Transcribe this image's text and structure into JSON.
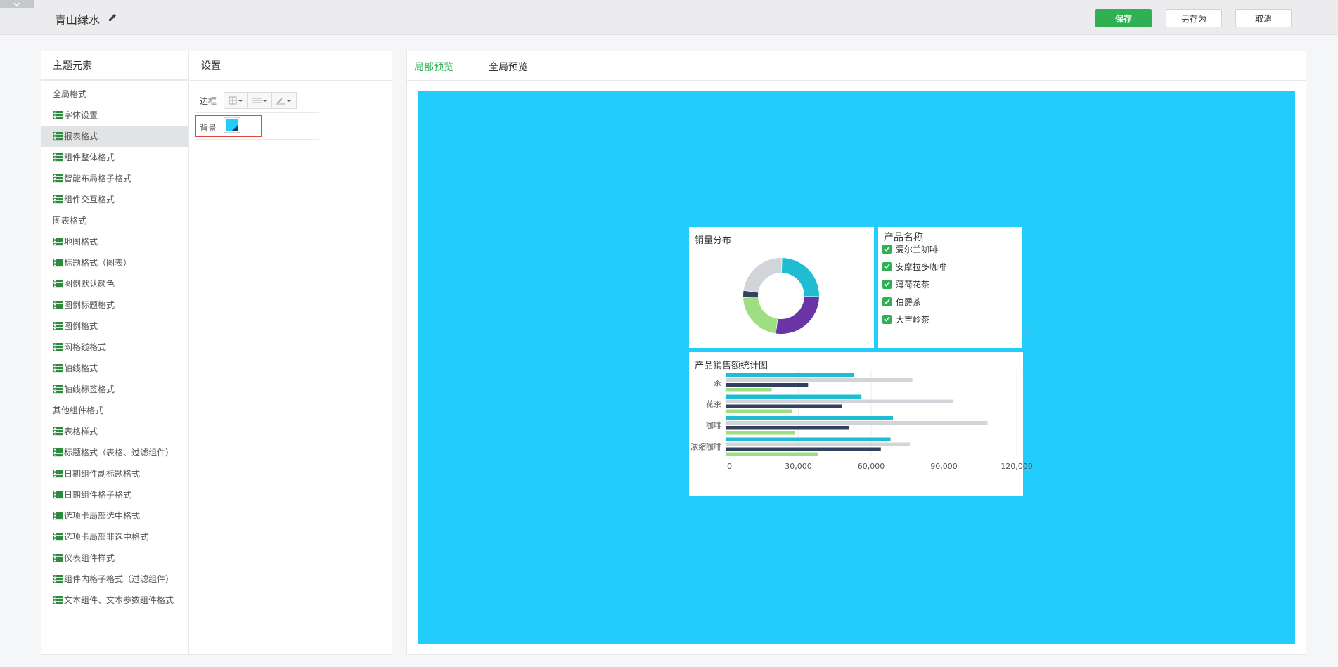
{
  "header": {
    "title": "青山绿水",
    "save_label": "保存",
    "save_as_label": "另存为",
    "cancel_label": "取消"
  },
  "elements_panel": {
    "title": "主题元素",
    "items": [
      {
        "label": "全局格式",
        "type": "group"
      },
      {
        "label": "字体设置",
        "type": "leaf"
      },
      {
        "label": "报表格式",
        "type": "leaf",
        "selected": true
      },
      {
        "label": "组件整体格式",
        "type": "leaf"
      },
      {
        "label": "智能布局格子格式",
        "type": "leaf"
      },
      {
        "label": "组件交互格式",
        "type": "leaf"
      },
      {
        "label": "图表格式",
        "type": "group"
      },
      {
        "label": "地图格式",
        "type": "leaf"
      },
      {
        "label": "标题格式（图表）",
        "type": "leaf"
      },
      {
        "label": "图例默认颜色",
        "type": "leaf"
      },
      {
        "label": "图例标题格式",
        "type": "leaf"
      },
      {
        "label": "图例格式",
        "type": "leaf"
      },
      {
        "label": "网格线格式",
        "type": "leaf"
      },
      {
        "label": "轴线格式",
        "type": "leaf"
      },
      {
        "label": "轴线标签格式",
        "type": "leaf"
      },
      {
        "label": "其他组件格式",
        "type": "group"
      },
      {
        "label": "表格样式",
        "type": "leaf"
      },
      {
        "label": "标题格式（表格、过滤组件）",
        "type": "leaf"
      },
      {
        "label": "日期组件副标题格式",
        "type": "leaf"
      },
      {
        "label": "日期组件格子格式",
        "type": "leaf"
      },
      {
        "label": "选项卡局部选中格式",
        "type": "leaf"
      },
      {
        "label": "选项卡局部非选中格式",
        "type": "leaf"
      },
      {
        "label": "仪表组件样式",
        "type": "leaf"
      },
      {
        "label": "组件内格子格式（过滤组件）",
        "type": "leaf"
      },
      {
        "label": "文本组件、文本参数组件格式",
        "type": "leaf"
      }
    ]
  },
  "settings_panel": {
    "title": "设置",
    "border_label": "边框",
    "background_label": "背景",
    "background_color": "#20cdfc"
  },
  "preview": {
    "tab_local": "局部预览",
    "tab_global": "全局预览",
    "canvas_color": "#22cdfc"
  },
  "filter_card": {
    "title": "产品名称",
    "items": [
      "爱尔兰咖啡",
      "安摩拉多咖啡",
      "薄荷花茶",
      "伯爵茶",
      "大吉岭茶"
    ]
  },
  "chart_data": [
    {
      "type": "pie",
      "title": "销量分布",
      "donut": true,
      "slices": [
        {
          "value": 25,
          "color": "#1fbcd2"
        },
        {
          "value": 27,
          "color": "#6a34a6"
        },
        {
          "value": 22,
          "color": "#9ddf82"
        },
        {
          "value": 3,
          "color": "#33415e"
        },
        {
          "value": 23,
          "color": "#d1d4d8"
        }
      ]
    },
    {
      "type": "bar",
      "orientation": "horizontal",
      "title": "产品销售额统计图",
      "categories": [
        "茶",
        "花茶",
        "咖啡",
        "浓缩咖啡"
      ],
      "series_colors": [
        "#1fbcd2",
        "#d1d4d8",
        "#33415e",
        "#9ddf82"
      ],
      "series": [
        {
          "values": [
            53000,
            56000,
            69000,
            68000
          ]
        },
        {
          "values": [
            77000,
            94000,
            108000,
            76000
          ]
        },
        {
          "values": [
            34000,
            48000,
            51000,
            64000
          ]
        },
        {
          "values": [
            19000,
            27500,
            28500,
            38000
          ]
        }
      ],
      "xlim": [
        0,
        120000
      ],
      "xticks": [
        "0",
        "30,000",
        "60,000",
        "90,000",
        "120,000"
      ],
      "grid": true
    }
  ]
}
